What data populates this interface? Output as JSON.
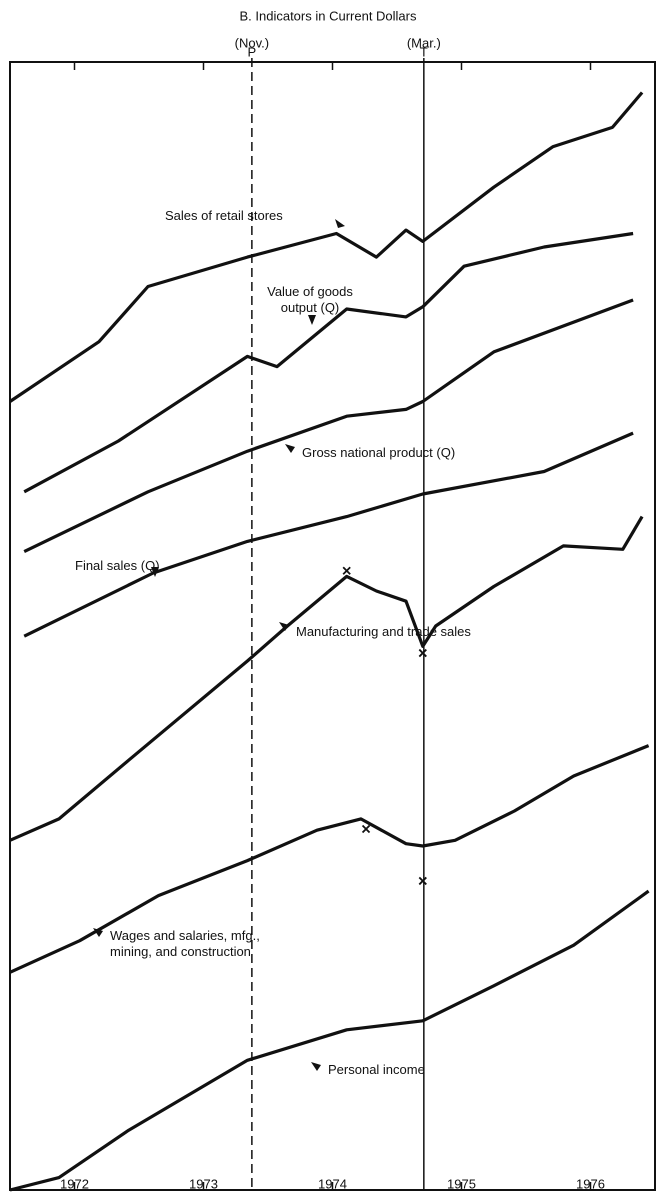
{
  "chart_data": {
    "type": "line",
    "title": "B. Indicators in Current Dollars",
    "xlim": [
      1972,
      1977
    ],
    "xticks": [
      {
        "value": 1972.5,
        "label": "1972"
      },
      {
        "value": 1973.5,
        "label": "1973"
      },
      {
        "value": 1974.5,
        "label": "1974"
      },
      {
        "value": 1975.5,
        "label": "1975"
      },
      {
        "value": 1976.5,
        "label": "1976"
      }
    ],
    "ylim": [
      0,
      100
    ],
    "color": "#111111",
    "reference_lines": [
      {
        "x": 1973.875,
        "note": "(Nov.)",
        "label": "P",
        "style": "dashed"
      },
      {
        "x": 1975.208,
        "note": "(Mar.)",
        "label": "T",
        "style": "solid"
      }
    ],
    "series": [
      {
        "name": "Sales of retail stores",
        "x": [
          1972.0,
          1972.69,
          1973.07,
          1973.84,
          1974.53,
          1974.84,
          1975.07,
          1975.2,
          1975.75,
          1976.21,
          1976.67,
          1976.9
        ],
        "values": [
          69.9,
          75.2,
          80.1,
          82.7,
          84.8,
          82.7,
          85.1,
          84.1,
          88.9,
          92.5,
          94.2,
          97.3
        ]
      },
      {
        "name": "Value of goods output (Q)",
        "x": [
          1972.11,
          1972.84,
          1973.84,
          1974.07,
          1974.61,
          1975.07,
          1975.2,
          1975.52,
          1976.14,
          1976.83
        ],
        "values": [
          61.9,
          66.4,
          73.9,
          73.0,
          78.1,
          77.4,
          78.3,
          81.9,
          83.6,
          84.8
        ]
      },
      {
        "name": "Gross national product (Q)",
        "x": [
          1972.11,
          1973.07,
          1973.84,
          1974.61,
          1975.07,
          1975.2,
          1975.75,
          1976.83
        ],
        "values": [
          56.6,
          61.9,
          65.5,
          68.6,
          69.2,
          69.9,
          74.3,
          78.9
        ]
      },
      {
        "name": "Final sales (Q)",
        "x": [
          1972.11,
          1973.11,
          1973.84,
          1974.61,
          1975.2,
          1976.14,
          1976.83
        ],
        "values": [
          49.1,
          54.7,
          57.5,
          59.7,
          61.7,
          63.7,
          67.1
        ]
      },
      {
        "name": "Manufacturing and trade sales",
        "x": [
          1972.0,
          1972.38,
          1972.92,
          1973.84,
          1974.15,
          1974.61,
          1974.84,
          1975.07,
          1975.2,
          1975.3,
          1975.75,
          1976.29,
          1976.75,
          1976.9
        ],
        "values": [
          31.0,
          32.9,
          38.1,
          46.9,
          50.0,
          54.4,
          53.1,
          52.2,
          48.2,
          50.0,
          53.5,
          57.1,
          56.8,
          59.7
        ]
      },
      {
        "name": "Wages and salaries, mfg., mining, and construction",
        "x": [
          1972.0,
          1972.54,
          1973.15,
          1973.84,
          1974.38,
          1974.72,
          1975.07,
          1975.2,
          1975.45,
          1975.91,
          1976.37,
          1976.95
        ],
        "values": [
          19.3,
          22.1,
          26.1,
          29.2,
          31.9,
          32.9,
          30.7,
          30.5,
          31.0,
          33.6,
          36.7,
          39.4
        ]
      },
      {
        "name": "Personal income",
        "x": [
          1972.0,
          1972.38,
          1972.92,
          1973.84,
          1974.61,
          1975.2,
          1975.75,
          1976.37,
          1976.95
        ],
        "values": [
          0,
          1.1,
          5.3,
          11.5,
          14.2,
          15.0,
          18.1,
          21.7,
          26.5
        ]
      }
    ],
    "markers": [
      {
        "x": 1974.61,
        "y": 54.9
      },
      {
        "x": 1975.2,
        "y": 47.6
      },
      {
        "x": 1974.76,
        "y": 32.0
      },
      {
        "x": 1975.2,
        "y": 27.4
      }
    ]
  }
}
